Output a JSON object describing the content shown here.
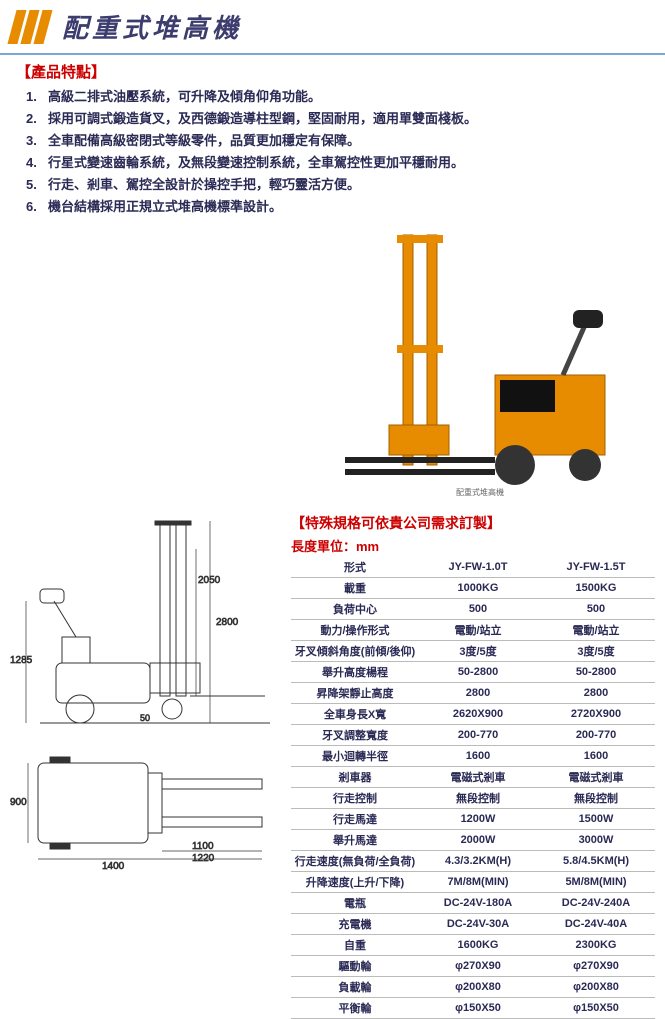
{
  "header": {
    "title": "配重式堆高機"
  },
  "features": {
    "section_title": "【產品特點】",
    "items": [
      "高級二排式油壓系統，可升降及傾角仰角功能。",
      "採用可調式鍛造貨叉，及西德鍛造導柱型鋼，堅固耐用，適用單雙面棧板。",
      "全車配備高級密閉式等級零件，品質更加穩定有保障。",
      "行星式變速齒輪系統，及無段變速控制系統，全車駕控性更加平穩耐用。",
      "行走、剎車、駕控全設計於操控手把，輕巧靈活方便。",
      "機台結構採用正規立式堆高機標準設計。"
    ]
  },
  "photo": {
    "alt": "配重式堆高機 產品圖"
  },
  "drawings": {
    "side": {
      "total_height": "2800",
      "handle_height": "1285",
      "ground_clear": "50",
      "mast_inner_height": "2050"
    },
    "top": {
      "width": "900",
      "length_overall": "1400",
      "fork_length": "1220",
      "fork_tip": "1100"
    }
  },
  "spec": {
    "custom_note": "【特殊規格可依貴公司需求訂製】",
    "unit_label": "長度單位：mm",
    "cols": [
      "JY-FW-1.0T",
      "JY-FW-1.5T"
    ],
    "rows": [
      {
        "label": "形式",
        "v1": "JY-FW-1.0T",
        "v2": "JY-FW-1.5T"
      },
      {
        "label": "載重",
        "v1": "1000KG",
        "v2": "1500KG"
      },
      {
        "label": "負荷中心",
        "v1": "500",
        "v2": "500"
      },
      {
        "label": "動力/操作形式",
        "v1": "電動/站立",
        "v2": "電動/站立"
      },
      {
        "label": "牙叉傾斜角度(前傾/後仰)",
        "v1": "3度/5度",
        "v2": "3度/5度"
      },
      {
        "label": "舉升高度楊程",
        "v1": "50-2800",
        "v2": "50-2800"
      },
      {
        "label": "昇降架靜止高度",
        "v1": "2800",
        "v2": "2800"
      },
      {
        "label": "全車身長X寬",
        "v1": "2620X900",
        "v2": "2720X900"
      },
      {
        "label": "牙叉調整寬度",
        "v1": "200-770",
        "v2": "200-770"
      },
      {
        "label": "最小迴轉半徑",
        "v1": "1600",
        "v2": "1600"
      },
      {
        "label": "剎車器",
        "v1": "電磁式剎車",
        "v2": "電磁式剎車"
      },
      {
        "label": "行走控制",
        "v1": "無段控制",
        "v2": "無段控制"
      },
      {
        "label": "行走馬達",
        "v1": "1200W",
        "v2": "1500W"
      },
      {
        "label": "舉升馬達",
        "v1": "2000W",
        "v2": "3000W"
      },
      {
        "label": "行走速度(無負荷/全負荷)",
        "v1": "4.3/3.2KM(H)",
        "v2": "5.8/4.5KM(H)"
      },
      {
        "label": "升降速度(上升/下降)",
        "v1": "7M/8M(MIN)",
        "v2": "5M/8M(MIN)"
      },
      {
        "label": "電瓶",
        "v1": "DC-24V-180A",
        "v2": "DC-24V-240A"
      },
      {
        "label": "充電機",
        "v1": "DC-24V-30A",
        "v2": "DC-24V-40A"
      },
      {
        "label": "自重",
        "v1": "1600KG",
        "v2": "2300KG"
      },
      {
        "label": "驅動輪",
        "v1": "φ270X90",
        "v2": "φ270X90"
      },
      {
        "label": "負載輪",
        "v1": "φ200X80",
        "v2": "φ200X80"
      },
      {
        "label": "平衡輪",
        "v1": "φ150X50",
        "v2": "φ150X50"
      }
    ]
  },
  "colors": {
    "accent_orange": "#e78b00",
    "title_color": "#3c3c6e",
    "red": "#c00",
    "header_rule": "#7aa8d8"
  }
}
